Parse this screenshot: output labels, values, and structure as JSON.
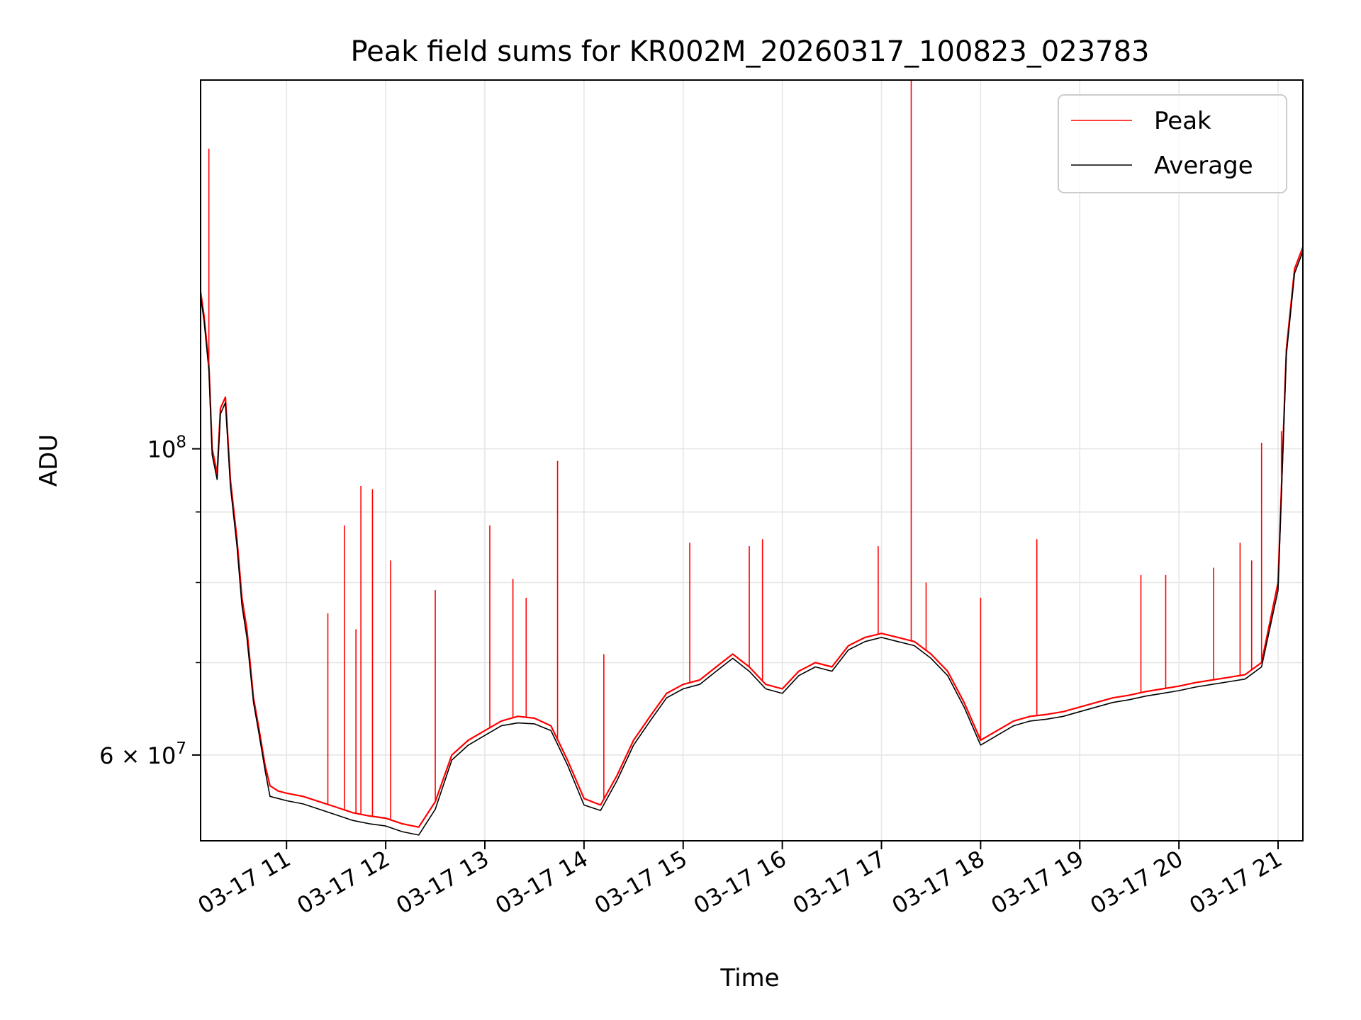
{
  "chart_data": {
    "type": "line",
    "title": "Peak field sums for KR002M_20260317_100823_023783",
    "xlabel": "Time",
    "ylabel": "ADU",
    "y_scale": "log",
    "grid": true,
    "legend_placement": "top-right",
    "xlim": [
      "2026-03-17 10:08",
      "2026-03-17 21:15"
    ],
    "ylim": [
      52000000,
      185000000
    ],
    "x_ticks": [
      {
        "value": "2026-03-17 11:00",
        "label": "03-17 11"
      },
      {
        "value": "2026-03-17 12:00",
        "label": "03-17 12"
      },
      {
        "value": "2026-03-17 13:00",
        "label": "03-17 13"
      },
      {
        "value": "2026-03-17 14:00",
        "label": "03-17 14"
      },
      {
        "value": "2026-03-17 15:00",
        "label": "03-17 15"
      },
      {
        "value": "2026-03-17 16:00",
        "label": "03-17 16"
      },
      {
        "value": "2026-03-17 17:00",
        "label": "03-17 17"
      },
      {
        "value": "2026-03-17 18:00",
        "label": "03-17 18"
      },
      {
        "value": "2026-03-17 19:00",
        "label": "03-17 19"
      },
      {
        "value": "2026-03-17 20:00",
        "label": "03-17 20"
      },
      {
        "value": "2026-03-17 21:00",
        "label": "03-17 21"
      }
    ],
    "y_major_ticks": [
      {
        "value": 100000000,
        "mantissa": "",
        "base": "10",
        "exp": "8"
      },
      {
        "value": 60000000,
        "mantissa": "6",
        "base": "10",
        "exp": "7"
      }
    ],
    "y_minor_ticks": [
      70000000,
      80000000,
      90000000
    ],
    "x": [
      "2026-03-17 10:08",
      "2026-03-17 10:10",
      "2026-03-17 10:13",
      "2026-03-17 10:15",
      "2026-03-17 10:18",
      "2026-03-17 10:20",
      "2026-03-17 10:23",
      "2026-03-17 10:26",
      "2026-03-17 10:30",
      "2026-03-17 10:33",
      "2026-03-17 10:36",
      "2026-03-17 10:40",
      "2026-03-17 10:43",
      "2026-03-17 10:47",
      "2026-03-17 10:50",
      "2026-03-17 10:55",
      "2026-03-17 11:00",
      "2026-03-17 11:10",
      "2026-03-17 11:20",
      "2026-03-17 11:30",
      "2026-03-17 11:40",
      "2026-03-17 11:50",
      "2026-03-17 12:00",
      "2026-03-17 12:10",
      "2026-03-17 12:20",
      "2026-03-17 12:30",
      "2026-03-17 12:40",
      "2026-03-17 12:50",
      "2026-03-17 13:00",
      "2026-03-17 13:10",
      "2026-03-17 13:20",
      "2026-03-17 13:30",
      "2026-03-17 13:40",
      "2026-03-17 13:50",
      "2026-03-17 14:00",
      "2026-03-17 14:10",
      "2026-03-17 14:20",
      "2026-03-17 14:30",
      "2026-03-17 14:40",
      "2026-03-17 14:50",
      "2026-03-17 15:00",
      "2026-03-17 15:10",
      "2026-03-17 15:20",
      "2026-03-17 15:30",
      "2026-03-17 15:40",
      "2026-03-17 15:50",
      "2026-03-17 16:00",
      "2026-03-17 16:10",
      "2026-03-17 16:20",
      "2026-03-17 16:30",
      "2026-03-17 16:40",
      "2026-03-17 16:50",
      "2026-03-17 17:00",
      "2026-03-17 17:10",
      "2026-03-17 17:20",
      "2026-03-17 17:30",
      "2026-03-17 17:40",
      "2026-03-17 17:50",
      "2026-03-17 18:00",
      "2026-03-17 18:10",
      "2026-03-17 18:20",
      "2026-03-17 18:30",
      "2026-03-17 18:40",
      "2026-03-17 18:50",
      "2026-03-17 19:00",
      "2026-03-17 19:10",
      "2026-03-17 19:20",
      "2026-03-17 19:30",
      "2026-03-17 19:40",
      "2026-03-17 19:50",
      "2026-03-17 20:00",
      "2026-03-17 20:10",
      "2026-03-17 20:20",
      "2026-03-17 20:30",
      "2026-03-17 20:40",
      "2026-03-17 20:50",
      "2026-03-17 21:00",
      "2026-03-17 21:05",
      "2026-03-17 21:10",
      "2026-03-17 21:15"
    ],
    "series": [
      {
        "name": "Peak",
        "color": "#ff0000",
        "values": [
          130000000,
          125000000,
          115000000,
          100000000,
          96000000,
          107000000,
          109000000,
          95000000,
          86000000,
          78000000,
          74000000,
          66000000,
          63000000,
          59000000,
          57000000,
          56500000,
          56300000,
          56000000,
          55500000,
          55000000,
          54500000,
          54200000,
          54000000,
          53500000,
          53200000,
          55500000,
          60000000,
          61500000,
          62500000,
          63500000,
          64000000,
          63800000,
          63000000,
          59500000,
          55800000,
          55200000,
          58000000,
          61500000,
          64000000,
          66500000,
          67500000,
          68000000,
          69500000,
          71000000,
          69500000,
          67500000,
          67000000,
          69000000,
          70000000,
          69500000,
          72000000,
          73000000,
          73500000,
          73000000,
          72500000,
          71000000,
          69000000,
          65500000,
          61500000,
          62500000,
          63500000,
          64000000,
          64200000,
          64500000,
          65000000,
          65500000,
          66000000,
          66300000,
          66700000,
          67000000,
          67300000,
          67700000,
          68000000,
          68300000,
          68600000,
          70000000,
          80000000,
          118000000,
          135000000,
          140000000
        ]
      },
      {
        "name": "Average",
        "color": "#000000",
        "values": [
          129000000,
          124000000,
          114000000,
          99000000,
          95000000,
          106000000,
          108000000,
          94000000,
          85000000,
          77000000,
          73000000,
          65500000,
          62500000,
          58500000,
          56000000,
          55800000,
          55600000,
          55300000,
          54800000,
          54300000,
          53800000,
          53500000,
          53300000,
          52800000,
          52500000,
          54800000,
          59500000,
          61000000,
          62000000,
          63000000,
          63300000,
          63200000,
          62500000,
          59000000,
          55200000,
          54700000,
          57500000,
          61000000,
          63500000,
          66000000,
          67000000,
          67500000,
          69000000,
          70500000,
          69000000,
          67000000,
          66500000,
          68500000,
          69500000,
          69000000,
          71500000,
          72500000,
          73000000,
          72500000,
          72000000,
          70500000,
          68500000,
          65000000,
          61000000,
          62000000,
          63000000,
          63500000,
          63700000,
          64000000,
          64500000,
          65000000,
          65500000,
          65800000,
          66200000,
          66500000,
          66800000,
          67200000,
          67500000,
          67800000,
          68100000,
          69500000,
          79000000,
          117000000,
          134000000,
          139000000
        ]
      }
    ],
    "annotations": {
      "peak_spikes": [
        {
          "x": "2026-03-17 10:13",
          "y": 165000000
        },
        {
          "x": "2026-03-17 11:25",
          "y": 76000000
        },
        {
          "x": "2026-03-17 11:35",
          "y": 88000000
        },
        {
          "x": "2026-03-17 11:42",
          "y": 74000000
        },
        {
          "x": "2026-03-17 11:45",
          "y": 94000000
        },
        {
          "x": "2026-03-17 11:52",
          "y": 93500000
        },
        {
          "x": "2026-03-17 12:03",
          "y": 83000000
        },
        {
          "x": "2026-03-17 12:30",
          "y": 79000000
        },
        {
          "x": "2026-03-17 13:03",
          "y": 88000000
        },
        {
          "x": "2026-03-17 13:17",
          "y": 80500000
        },
        {
          "x": "2026-03-17 13:25",
          "y": 78000000
        },
        {
          "x": "2026-03-17 13:44",
          "y": 98000000
        },
        {
          "x": "2026-03-17 14:12",
          "y": 71000000
        },
        {
          "x": "2026-03-17 15:04",
          "y": 85500000
        },
        {
          "x": "2026-03-17 15:40",
          "y": 85000000
        },
        {
          "x": "2026-03-17 15:48",
          "y": 86000000
        },
        {
          "x": "2026-03-17 16:58",
          "y": 85000000
        },
        {
          "x": "2026-03-17 17:18",
          "y": 185000000
        },
        {
          "x": "2026-03-17 17:27",
          "y": 80000000
        },
        {
          "x": "2026-03-17 18:00",
          "y": 78000000
        },
        {
          "x": "2026-03-17 18:34",
          "y": 86000000
        },
        {
          "x": "2026-03-17 19:37",
          "y": 81000000
        },
        {
          "x": "2026-03-17 19:52",
          "y": 81000000
        },
        {
          "x": "2026-03-17 20:21",
          "y": 82000000
        },
        {
          "x": "2026-03-17 20:37",
          "y": 85500000
        },
        {
          "x": "2026-03-17 20:44",
          "y": 83000000
        },
        {
          "x": "2026-03-17 20:50",
          "y": 101000000
        },
        {
          "x": "2026-03-17 21:02",
          "y": 103000000
        }
      ]
    }
  }
}
